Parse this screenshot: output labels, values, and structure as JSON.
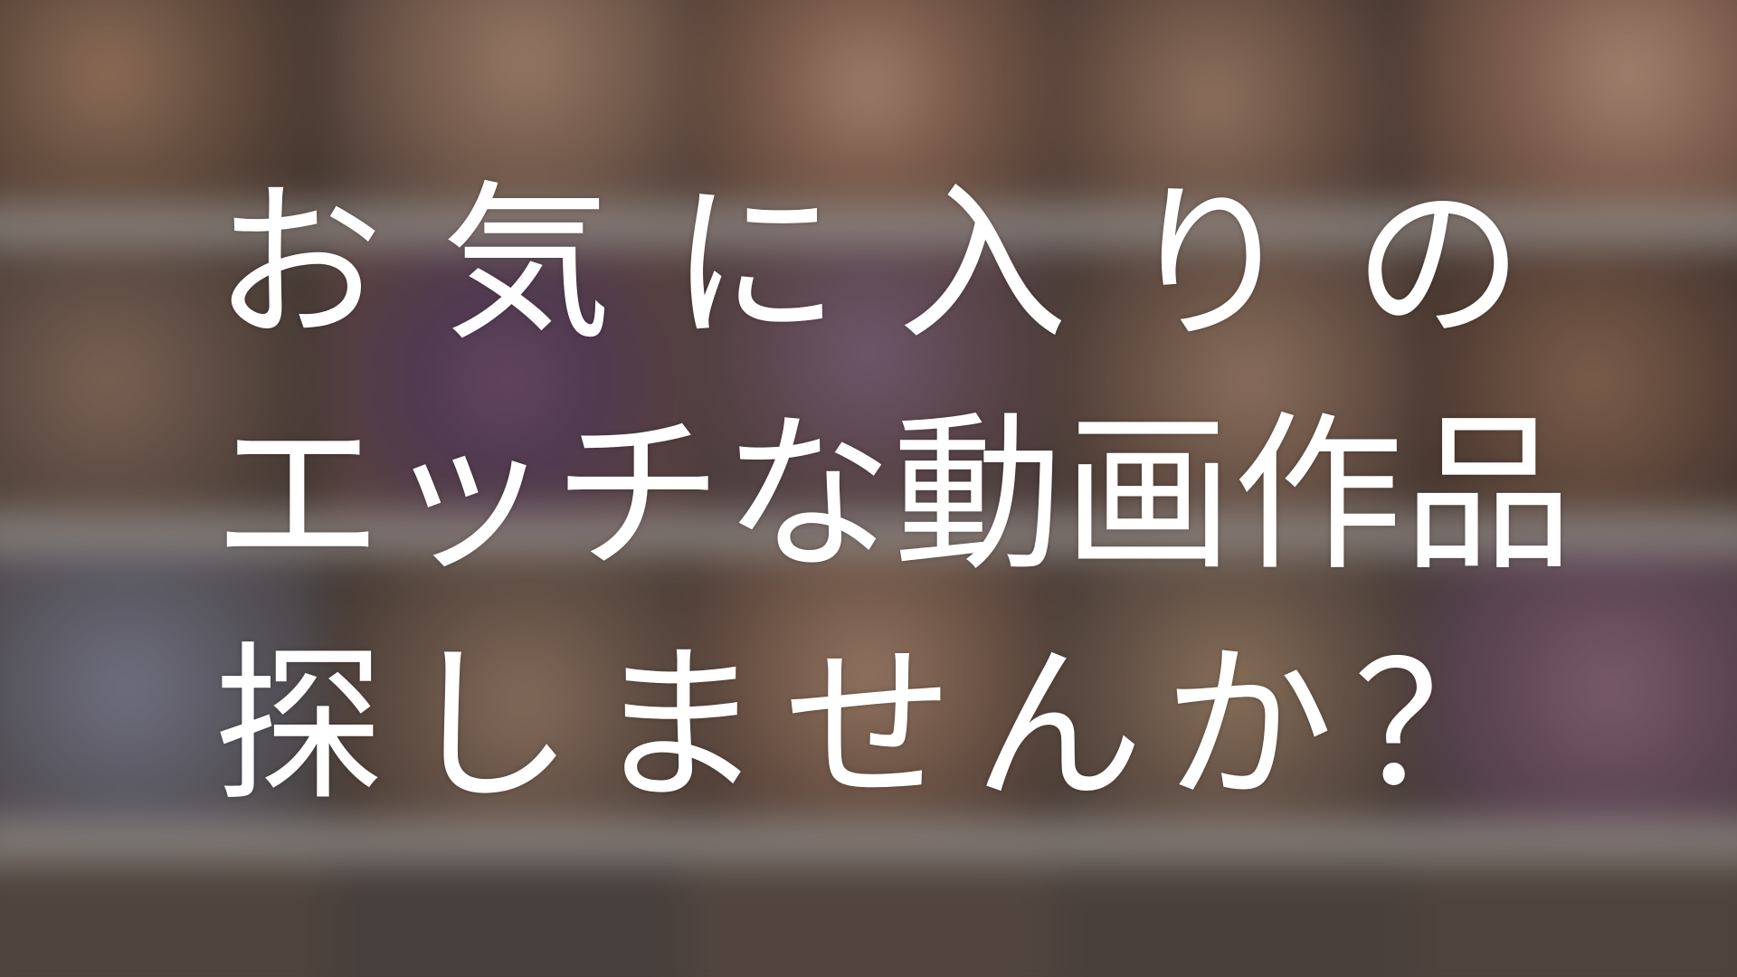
{
  "headline": {
    "line1": [
      "お",
      "気",
      "に",
      "入",
      "り",
      "の"
    ],
    "line2": [
      "エ",
      "ッ",
      "チ",
      "な",
      "動",
      "画",
      "作",
      "品"
    ],
    "line3": [
      "探",
      "し",
      "ま",
      "せ",
      "ん",
      "か",
      "？"
    ]
  },
  "colors": {
    "text": "#ffffff",
    "shelf": "#b9b2ae"
  }
}
